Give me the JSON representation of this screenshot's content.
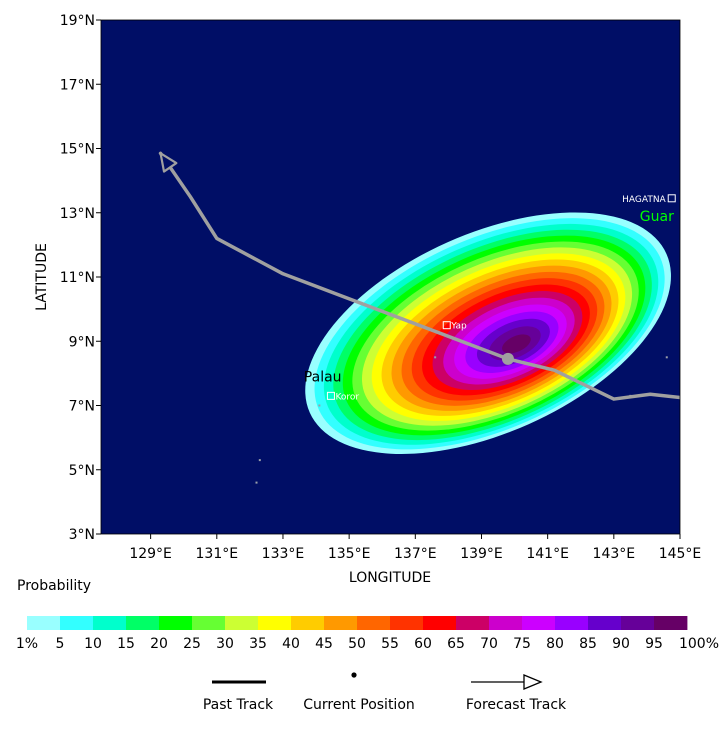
{
  "map": {
    "background": "#000e66",
    "x_axis_label": "LONGITUDE",
    "y_axis_label": "LATITUDE",
    "lon_range": [
      127.5,
      145.0
    ],
    "lat_range": [
      3.0,
      19.0
    ],
    "x_ticks": [
      {
        "lon": 129,
        "label": "129°E"
      },
      {
        "lon": 131,
        "label": "131°E"
      },
      {
        "lon": 133,
        "label": "133°E"
      },
      {
        "lon": 135,
        "label": "135°E"
      },
      {
        "lon": 137,
        "label": "137°E"
      },
      {
        "lon": 139,
        "label": "139°E"
      },
      {
        "lon": 141,
        "label": "141°E"
      },
      {
        "lon": 143,
        "label": "143°E"
      },
      {
        "lon": 145,
        "label": "145°E"
      }
    ],
    "y_ticks": [
      {
        "lat": 3,
        "label": "3°N"
      },
      {
        "lat": 5,
        "label": "5°N"
      },
      {
        "lat": 7,
        "label": "7°N"
      },
      {
        "lat": 9,
        "label": "9°N"
      },
      {
        "lat": 11,
        "label": "11°N"
      },
      {
        "lat": 13,
        "label": "13°N"
      },
      {
        "lat": 15,
        "label": "15°N"
      },
      {
        "lat": 17,
        "label": "17°N"
      },
      {
        "lat": 19,
        "label": "19°N"
      }
    ],
    "places": [
      {
        "name": "Yap",
        "lon": 137.95,
        "lat": 9.5,
        "marker": true,
        "color": "#ffffff"
      },
      {
        "name": "Koror",
        "lon": 134.45,
        "lat": 7.3,
        "marker": true,
        "color": "#ffffff"
      },
      {
        "name": "HAGATNA",
        "lon": 144.75,
        "lat": 13.45,
        "marker": true,
        "color": "#ffffff"
      },
      {
        "name": "Palau",
        "lon": 134.2,
        "lat": 7.75,
        "marker": false,
        "color": "#000000"
      },
      {
        "name": "Guar",
        "lon": 144.3,
        "lat": 12.75,
        "marker": false,
        "color": "#00ff00"
      }
    ],
    "forecast_track": [
      [
        145.0,
        7.25
      ],
      [
        144.1,
        7.35
      ],
      [
        143.0,
        7.2
      ],
      [
        141.2,
        8.1
      ],
      [
        139.8,
        8.45
      ],
      [
        133.0,
        11.1
      ],
      [
        131.0,
        12.2
      ],
      [
        130.2,
        13.5
      ],
      [
        129.3,
        14.85
      ]
    ],
    "current_position": {
      "lon": 139.8,
      "lat": 8.45
    },
    "probability_field": {
      "center_lon": 139.2,
      "center_lat": 9.25,
      "rotation_deg": -24,
      "outer_semi_major_deg": 5.9,
      "outer_semi_minor_deg": 3.1,
      "peak_offset_lon": 0.9,
      "peak_offset_lat": -0.35
    }
  },
  "legend": {
    "title": "Probability",
    "bins": [
      {
        "label": "1%",
        "color": "#99ffff"
      },
      {
        "label": "5",
        "color": "#33ffff"
      },
      {
        "label": "10",
        "color": "#00ffcc"
      },
      {
        "label": "15",
        "color": "#00ff66"
      },
      {
        "label": "20",
        "color": "#00ff00"
      },
      {
        "label": "25",
        "color": "#66ff33"
      },
      {
        "label": "30",
        "color": "#ccff33"
      },
      {
        "label": "35",
        "color": "#ffff00"
      },
      {
        "label": "40",
        "color": "#ffcc00"
      },
      {
        "label": "45",
        "color": "#ff9900"
      },
      {
        "label": "50",
        "color": "#ff6600"
      },
      {
        "label": "55",
        "color": "#ff3300"
      },
      {
        "label": "60",
        "color": "#ff0000"
      },
      {
        "label": "65",
        "color": "#cc0066"
      },
      {
        "label": "70",
        "color": "#cc00cc"
      },
      {
        "label": "75",
        "color": "#cc00ff"
      },
      {
        "label": "80",
        "color": "#9900ff"
      },
      {
        "label": "85",
        "color": "#6600cc"
      },
      {
        "label": "90",
        "color": "#660099"
      },
      {
        "label": "95",
        "color": "#660066"
      }
    ],
    "end_label": "100%"
  },
  "track_key": {
    "past": "Past Track",
    "current": "Current Position",
    "forecast": "Forecast Track"
  }
}
